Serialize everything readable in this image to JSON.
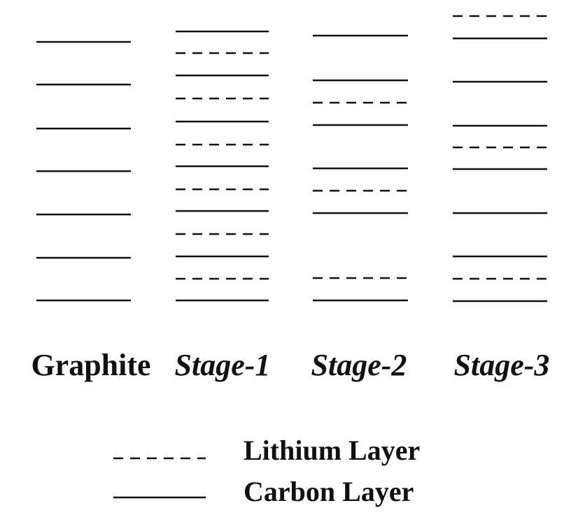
{
  "columns": [
    {
      "label": "Graphite",
      "italic": false,
      "layers": [
        "carbon",
        "carbon",
        "carbon",
        "carbon",
        "carbon",
        "carbon",
        "carbon"
      ]
    },
    {
      "label": "Stage-1",
      "italic": true,
      "layers": [
        "carbon",
        "lithium",
        "carbon",
        "lithium",
        "carbon",
        "lithium",
        "carbon",
        "lithium",
        "carbon",
        "lithium",
        "carbon",
        "lithium",
        "carbon"
      ]
    },
    {
      "label": "Stage-2",
      "italic": true,
      "layers": [
        "carbon",
        "carbon",
        "lithium",
        "carbon",
        "carbon",
        "lithium",
        "carbon",
        "lithium",
        "carbon"
      ]
    },
    {
      "label": "Stage-3",
      "italic": true,
      "layers": [
        "lithium",
        "carbon",
        "carbon",
        "carbon",
        "lithium",
        "carbon",
        "carbon",
        "carbon",
        "lithium",
        "carbon"
      ]
    }
  ],
  "legend": {
    "lithium_label": "Lithium Layer",
    "carbon_label": "Carbon Layer"
  },
  "colors": {
    "line": "#111111",
    "background": "#ffffff"
  }
}
